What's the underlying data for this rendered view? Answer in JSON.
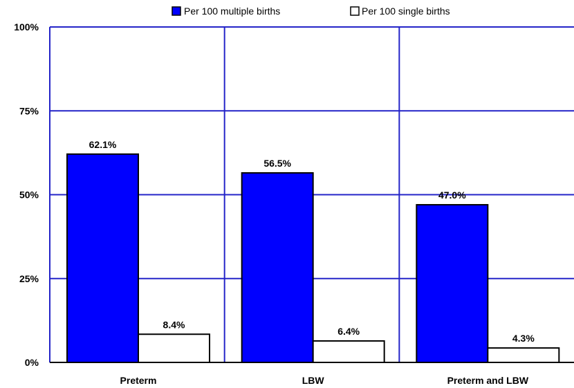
{
  "chart_data": {
    "type": "bar",
    "categories": [
      "Preterm",
      "LBW",
      "Preterm and LBW"
    ],
    "series": [
      {
        "name": "Per 100 multiple births",
        "values": [
          62.1,
          56.5,
          47.0
        ],
        "labels": [
          "62.1%",
          "56.5%",
          "47.0%"
        ],
        "color": "#0000ff"
      },
      {
        "name": "Per 100 single births",
        "values": [
          8.4,
          6.4,
          4.3
        ],
        "labels": [
          "8.4%",
          "6.4%",
          "4.3%"
        ],
        "color": "#ffffff"
      }
    ],
    "ylim": [
      0,
      100
    ],
    "yticks": [
      "0%",
      "25%",
      "50%",
      "75%",
      "100%"
    ],
    "grid": true,
    "grid_color": "#2323c8",
    "legend_position": "top"
  }
}
